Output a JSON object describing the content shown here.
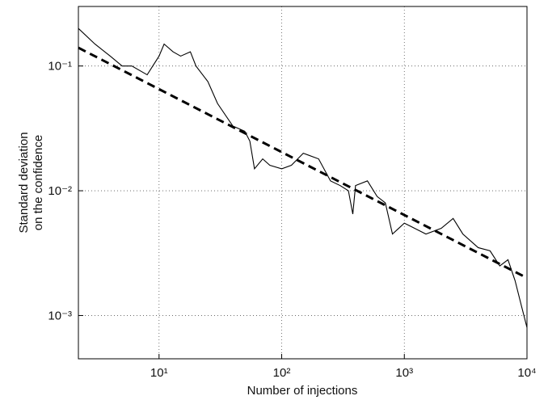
{
  "chart_data": {
    "type": "line",
    "xlabel": "Number of injections",
    "ylabel": [
      "Standard deviation",
      "on the confidence"
    ],
    "log_x": true,
    "log_y": true,
    "grid": true,
    "xlim": [
      2.2,
      10000
    ],
    "ylim": [
      0.00045,
      0.3
    ],
    "xticks": [
      {
        "value": 10,
        "label": "10¹"
      },
      {
        "value": 100,
        "label": "10²"
      },
      {
        "value": 1000,
        "label": "10³"
      },
      {
        "value": 10000,
        "label": "10⁴"
      }
    ],
    "yticks": [
      {
        "value": 0.001,
        "label": "10⁻³"
      },
      {
        "value": 0.01,
        "label": "10⁻²"
      },
      {
        "value": 0.1,
        "label": "10⁻¹"
      }
    ],
    "series": [
      {
        "color": "#000000",
        "style": "solid",
        "x": [
          2.2,
          3,
          4,
          5,
          6,
          8,
          10,
          11,
          13,
          15,
          18,
          20,
          25,
          30,
          40,
          50,
          55,
          60,
          70,
          80,
          100,
          120,
          150,
          200,
          250,
          300,
          350,
          380,
          400,
          500,
          600,
          700,
          800,
          900,
          1000,
          1500,
          2000,
          2500,
          3000,
          4000,
          5000,
          6000,
          7000,
          8000,
          9000,
          10000
        ],
        "values": [
          0.2,
          0.15,
          0.12,
          0.1,
          0.1,
          0.085,
          0.12,
          0.15,
          0.13,
          0.12,
          0.13,
          0.1,
          0.075,
          0.05,
          0.033,
          0.03,
          0.025,
          0.015,
          0.018,
          0.016,
          0.015,
          0.016,
          0.02,
          0.018,
          0.012,
          0.011,
          0.01,
          0.0065,
          0.011,
          0.012,
          0.009,
          0.008,
          0.0045,
          0.005,
          0.0055,
          0.0045,
          0.005,
          0.006,
          0.0045,
          0.0035,
          0.0033,
          0.0025,
          0.0028,
          0.0019,
          0.0012,
          0.0008
        ]
      },
      {
        "color": "#000000",
        "style": "dashed",
        "x": [
          2.2,
          10000
        ],
        "values": [
          0.14,
          0.002
        ]
      }
    ]
  }
}
